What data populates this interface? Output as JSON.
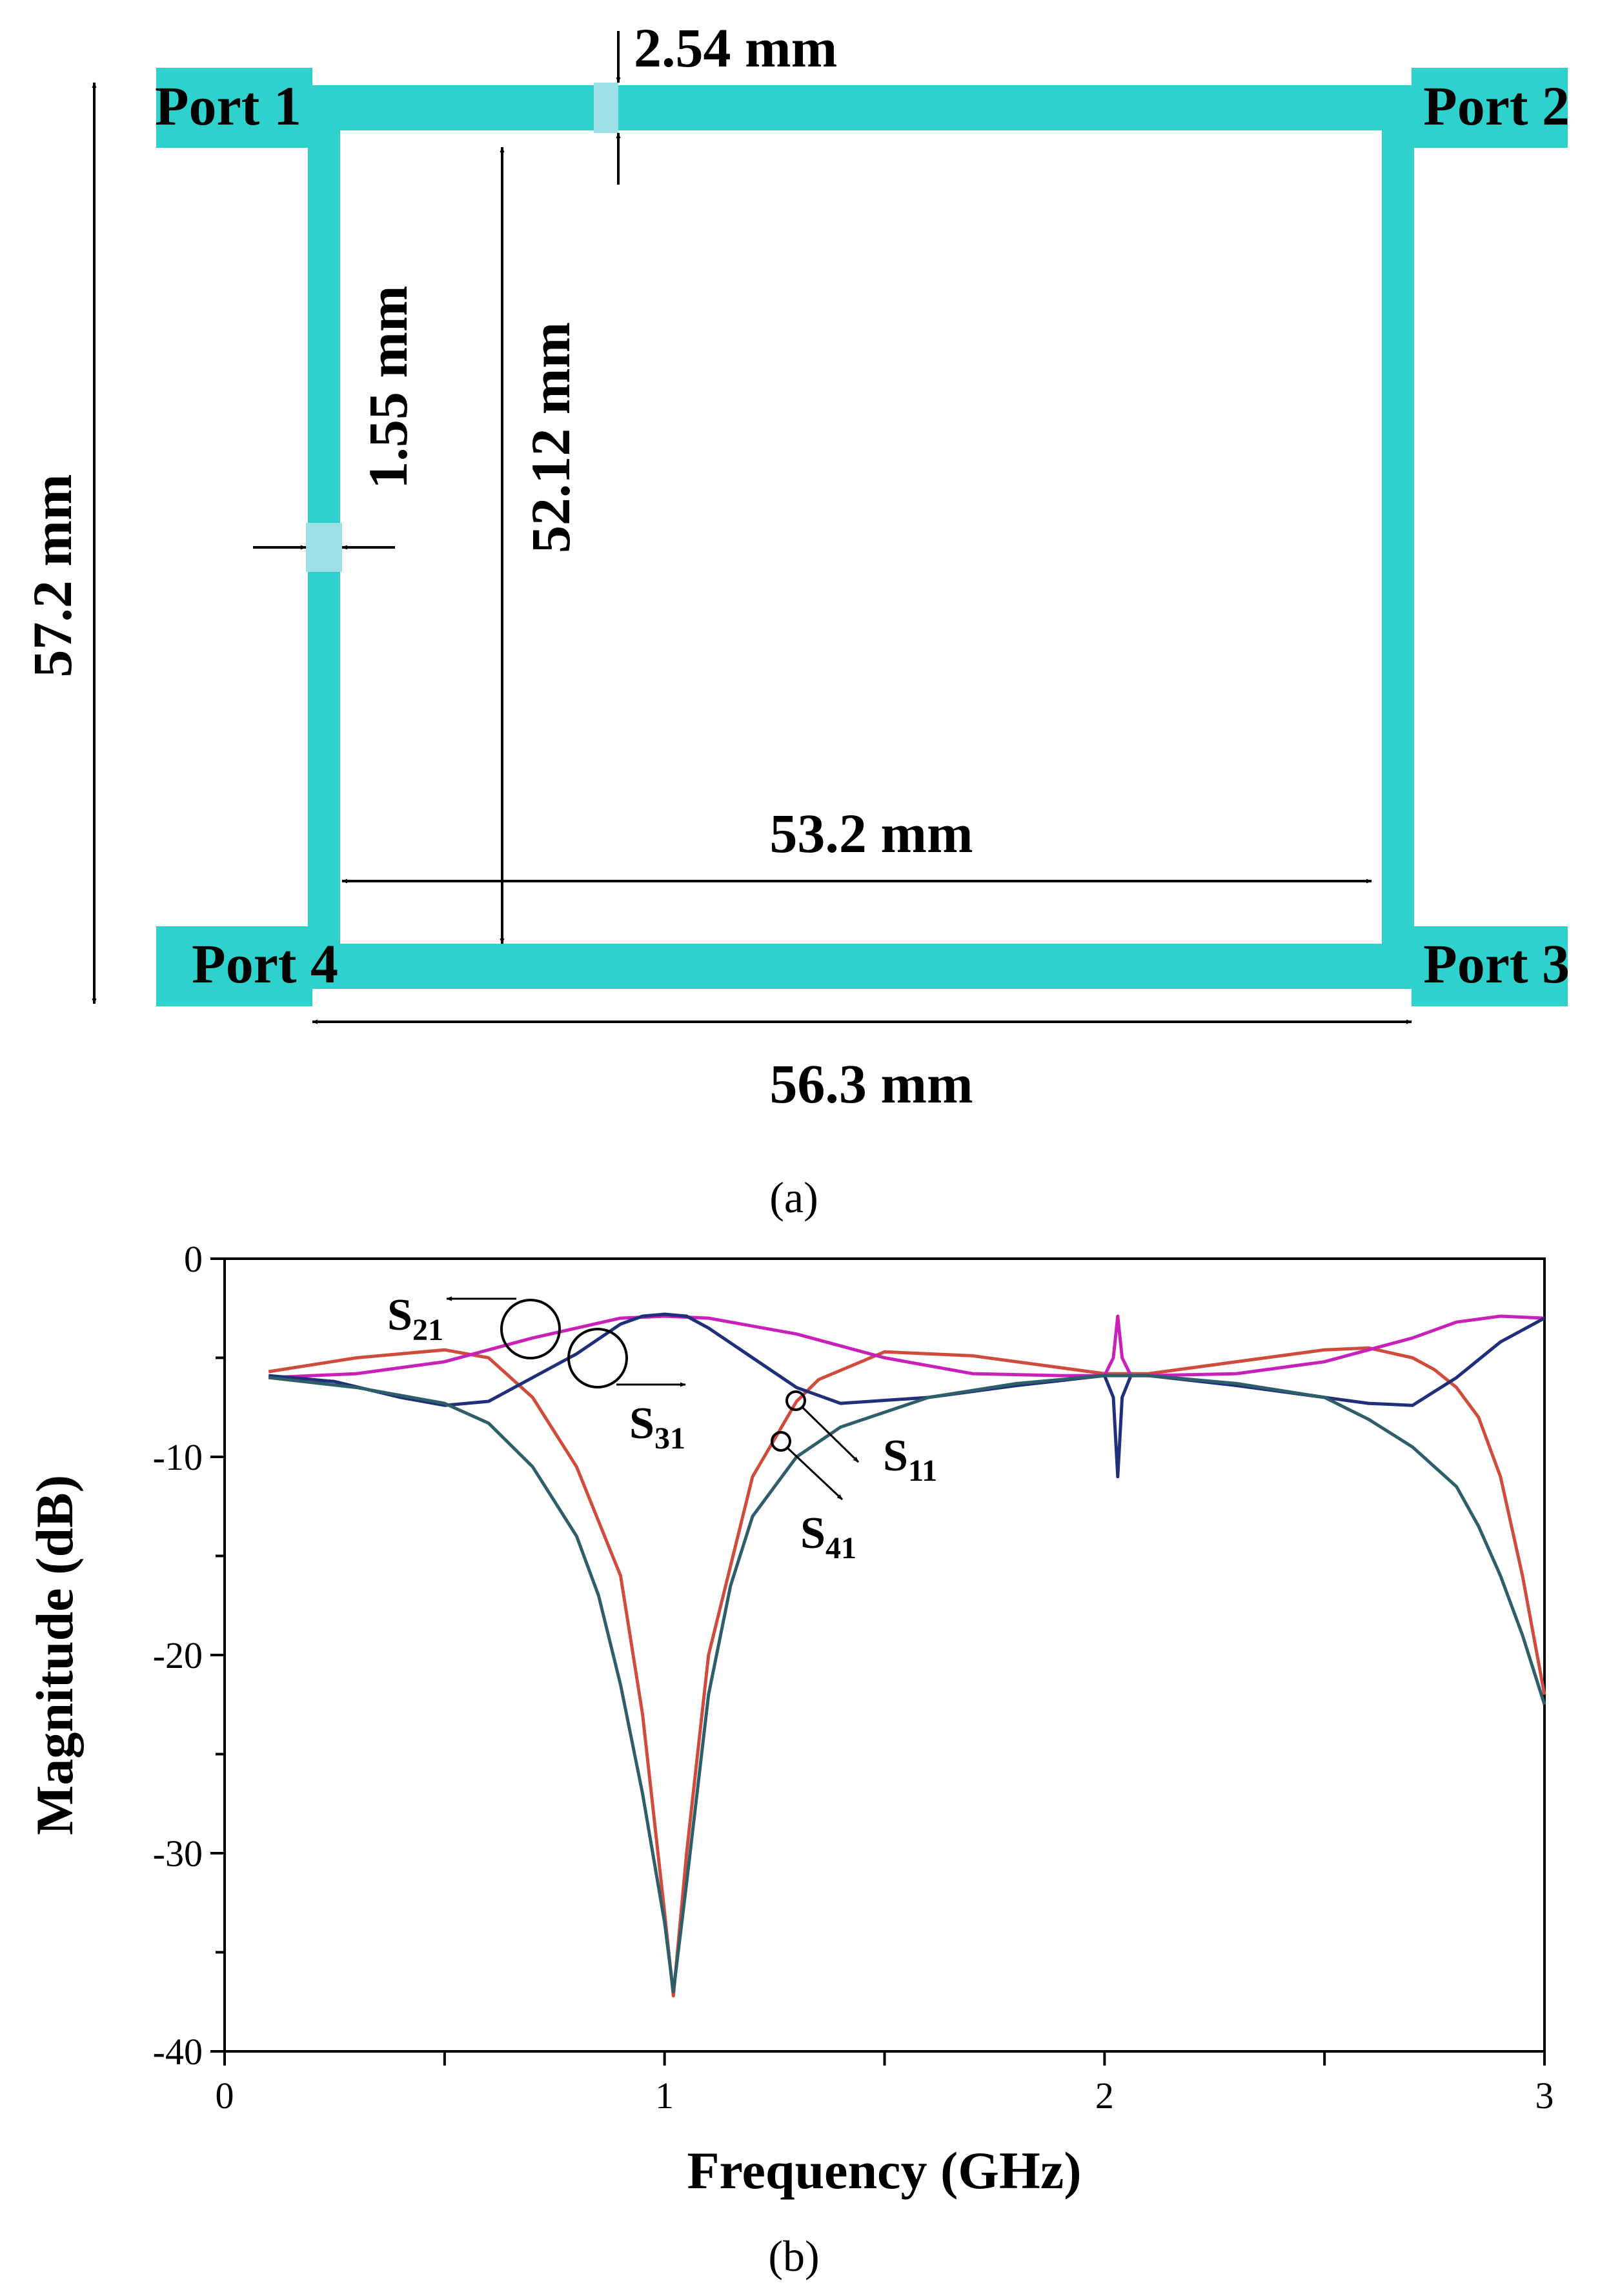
{
  "colors": {
    "microstrip": "#2ed1cb",
    "s11": "#cf4c3c",
    "s21": "#c820b8",
    "s31": "#1f2f7a",
    "s41": "#2e5e6a"
  },
  "layout_a": {
    "ports": [
      "Port 1",
      "Port 2",
      "Port 3",
      "Port 4"
    ],
    "dimensions": {
      "top_width": "2.54 mm",
      "side_width": "1.55 mm",
      "overall_height": "57.2 mm",
      "inner_height": "52.12 mm",
      "inner_width": "53.2 mm",
      "overall_width": "56.3 mm"
    },
    "caption": "(a)"
  },
  "chart_data": {
    "type": "line",
    "caption": "(b)",
    "xlabel": "Frequency (GHz)",
    "ylabel": "Magnitude (dB)",
    "xlim": [
      0,
      3
    ],
    "ylim": [
      -40,
      0
    ],
    "xticks": [
      0,
      1,
      2,
      3
    ],
    "yticks": [
      0,
      -10,
      -20,
      -30,
      -40
    ],
    "series": [
      {
        "name": "S11",
        "label_main": "S",
        "label_sub": "11",
        "color_key": "s11",
        "x": [
          0.1,
          0.3,
          0.5,
          0.6,
          0.7,
          0.8,
          0.9,
          0.95,
          1.0,
          1.02,
          1.05,
          1.1,
          1.2,
          1.3,
          1.35,
          1.5,
          1.7,
          2.0,
          2.1,
          2.3,
          2.5,
          2.6,
          2.7,
          2.75,
          2.8,
          2.85,
          2.9,
          2.95,
          3.0
        ],
        "y": [
          -5.7,
          -5.0,
          -4.6,
          -5.0,
          -7.0,
          -10.5,
          -16.0,
          -23.0,
          -33.0,
          -37.2,
          -30.0,
          -20.0,
          -11.0,
          -7.2,
          -6.1,
          -4.7,
          -4.9,
          -5.8,
          -5.8,
          -5.2,
          -4.6,
          -4.5,
          -5.0,
          -5.6,
          -6.5,
          -8.0,
          -11.0,
          -16.0,
          -22.0
        ]
      },
      {
        "name": "S21",
        "label_main": "S",
        "label_sub": "21",
        "color_key": "s21",
        "x": [
          0.1,
          0.3,
          0.5,
          0.7,
          0.9,
          1.0,
          1.1,
          1.3,
          1.5,
          1.7,
          1.9,
          2.0,
          2.02,
          2.03,
          2.04,
          2.06,
          2.1,
          2.3,
          2.5,
          2.7,
          2.8,
          2.9,
          3.0
        ],
        "y": [
          -6.0,
          -5.8,
          -5.2,
          -4.0,
          -3.0,
          -2.9,
          -3.0,
          -3.8,
          -5.0,
          -5.8,
          -5.9,
          -5.9,
          -5.0,
          -2.9,
          -5.0,
          -5.9,
          -5.9,
          -5.8,
          -5.2,
          -4.0,
          -3.2,
          -2.9,
          -3.0
        ]
      },
      {
        "name": "S31",
        "label_main": "S",
        "label_sub": "31",
        "color_key": "s31",
        "x": [
          0.1,
          0.25,
          0.4,
          0.5,
          0.6,
          0.7,
          0.8,
          0.9,
          0.95,
          1.0,
          1.05,
          1.1,
          1.2,
          1.3,
          1.4,
          1.6,
          1.8,
          2.0,
          2.02,
          2.03,
          2.04,
          2.06,
          2.1,
          2.3,
          2.5,
          2.6,
          2.7,
          2.8,
          2.9,
          3.0
        ],
        "y": [
          -5.9,
          -6.2,
          -7.0,
          -7.4,
          -7.2,
          -6.0,
          -4.8,
          -3.3,
          -2.9,
          -2.8,
          -2.9,
          -3.5,
          -5.0,
          -6.5,
          -7.3,
          -7.0,
          -6.4,
          -5.9,
          -7.0,
          -11.0,
          -7.0,
          -5.9,
          -5.9,
          -6.4,
          -7.0,
          -7.3,
          -7.4,
          -6.0,
          -4.2,
          -3.0
        ]
      },
      {
        "name": "S41",
        "label_main": "S",
        "label_sub": "41",
        "color_key": "s41",
        "x": [
          0.1,
          0.3,
          0.4,
          0.5,
          0.6,
          0.7,
          0.8,
          0.85,
          0.9,
          0.95,
          1.0,
          1.02,
          1.05,
          1.1,
          1.15,
          1.2,
          1.3,
          1.4,
          1.6,
          1.8,
          2.0,
          2.1,
          2.3,
          2.5,
          2.6,
          2.7,
          2.8,
          2.85,
          2.9,
          2.95,
          3.0
        ],
        "y": [
          -6.0,
          -6.5,
          -6.9,
          -7.3,
          -8.3,
          -10.5,
          -14.0,
          -17.0,
          -21.5,
          -27.0,
          -33.5,
          -37.0,
          -31.5,
          -22.0,
          -16.5,
          -13.0,
          -10.0,
          -8.5,
          -7.0,
          -6.3,
          -5.9,
          -5.9,
          -6.3,
          -7.0,
          -8.1,
          -9.5,
          -11.5,
          -13.5,
          -16.0,
          -19.0,
          -22.5
        ]
      }
    ]
  }
}
